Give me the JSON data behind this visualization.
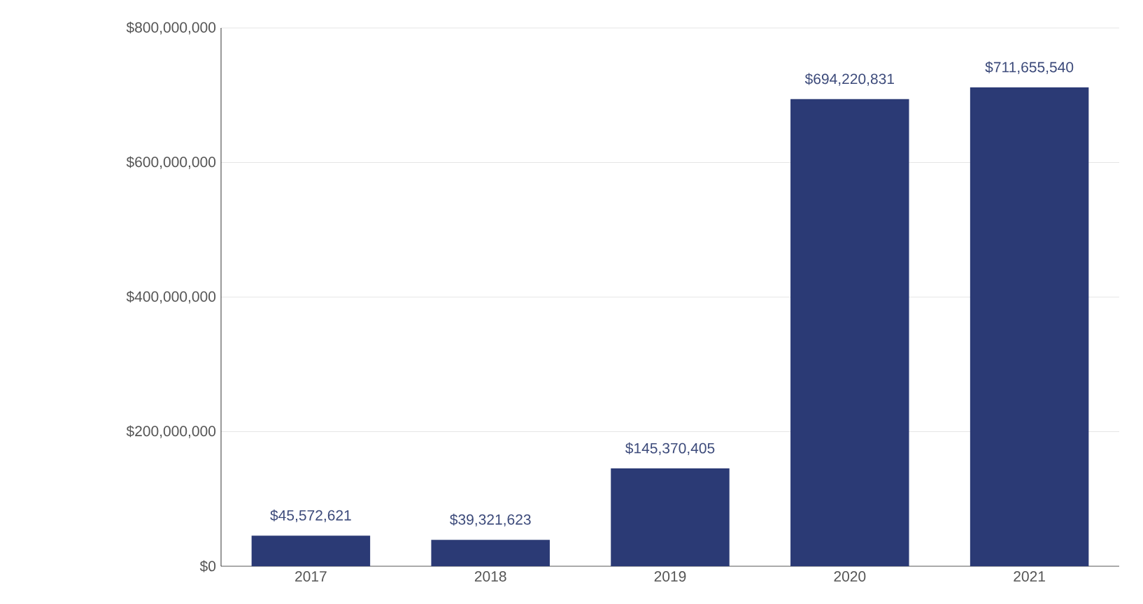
{
  "chart_data": {
    "type": "bar",
    "categories": [
      "2017",
      "2018",
      "2019",
      "2020",
      "2021"
    ],
    "values": [
      45572621,
      39321623,
      145370405,
      694220831,
      711655540
    ],
    "value_labels": [
      "$45,572,621",
      "$39,321,623",
      "$145,370,405",
      "$694,220,831",
      "$711,655,540"
    ],
    "color": "#2b3a75",
    "ylim": [
      0,
      800000000
    ],
    "yticks": [
      {
        "value": 0,
        "label": "$0"
      },
      {
        "value": 200000000,
        "label": "$200,000,000"
      },
      {
        "value": 400000000,
        "label": "$400,000,000"
      },
      {
        "value": 600000000,
        "label": "$600,000,000"
      },
      {
        "value": 800000000,
        "label": "$800,000,000"
      }
    ],
    "grid": "y"
  }
}
